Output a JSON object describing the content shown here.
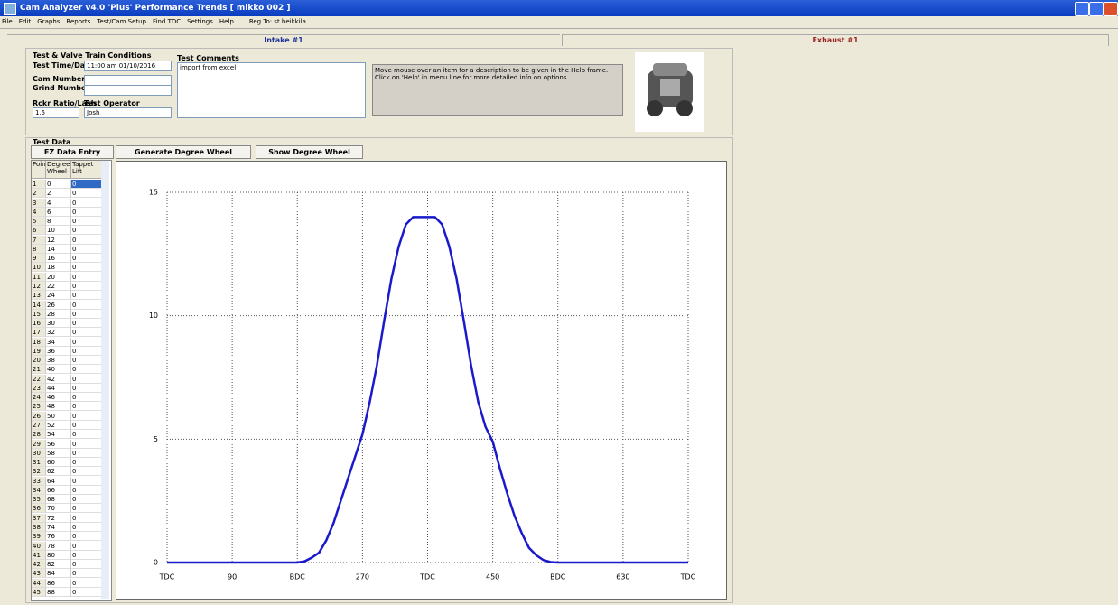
{
  "window": {
    "title": "Cam Analyzer v4.0 'Plus' Performance Trends  [ mikko 002 ]",
    "menu": [
      "File",
      "Edit",
      "Graphs",
      "Reports",
      "Test/Cam Setup",
      "Find TDC",
      "Settings",
      "Help"
    ],
    "registration": "Reg To: st.heikkila"
  },
  "tabs": [
    "Intake #1",
    "Exhaust #1"
  ],
  "conditions": {
    "heading": "Test & Valve Train Conditions",
    "time_label": "Test Time/Date",
    "time_value": "11:00 am  01/10/2016",
    "cam_label": "Cam Number",
    "grind_label": "Grind Number",
    "ratio_label": "Rckr Ratio/Lash",
    "ratio_value": "1.5",
    "operator_label": "Test Operator",
    "operator_value": "Josh",
    "comments_label": "Test Comments",
    "comments_value": "import from excel",
    "help_text": "Move mouse over an item for a description to be given in the Help frame.  Click on 'Help' in menu line for more detailed info on options."
  },
  "test_data": {
    "heading": "Test Data",
    "buttons": [
      "EZ Data Entry",
      "Generate Degree Wheel Readings",
      "Show Degree Wheel"
    ]
  },
  "table": {
    "columns": [
      "Point",
      "Degree Wheel",
      "Tappet Lift"
    ],
    "rows": [
      [
        1,
        0,
        0
      ],
      [
        2,
        2,
        0
      ],
      [
        3,
        4,
        0
      ],
      [
        4,
        6,
        0
      ],
      [
        5,
        8,
        0
      ],
      [
        6,
        10,
        0
      ],
      [
        7,
        12,
        0
      ],
      [
        8,
        14,
        0
      ],
      [
        9,
        16,
        0
      ],
      [
        10,
        18,
        0
      ],
      [
        11,
        20,
        0
      ],
      [
        12,
        22,
        0
      ],
      [
        13,
        24,
        0
      ],
      [
        14,
        26,
        0
      ],
      [
        15,
        28,
        0
      ],
      [
        16,
        30,
        0
      ],
      [
        17,
        32,
        0
      ],
      [
        18,
        34,
        0
      ],
      [
        19,
        36,
        0
      ],
      [
        20,
        38,
        0
      ],
      [
        21,
        40,
        0
      ],
      [
        22,
        42,
        0
      ],
      [
        23,
        44,
        0
      ],
      [
        24,
        46,
        0
      ],
      [
        25,
        48,
        0
      ],
      [
        26,
        50,
        0
      ],
      [
        27,
        52,
        0
      ],
      [
        28,
        54,
        0
      ],
      [
        29,
        56,
        0
      ],
      [
        30,
        58,
        0
      ],
      [
        31,
        60,
        0
      ],
      [
        32,
        62,
        0
      ],
      [
        33,
        64,
        0
      ],
      [
        34,
        66,
        0
      ],
      [
        35,
        68,
        0
      ],
      [
        36,
        70,
        0
      ],
      [
        37,
        72,
        0
      ],
      [
        38,
        74,
        0
      ],
      [
        39,
        76,
        0
      ],
      [
        40,
        78,
        0
      ],
      [
        41,
        80,
        0
      ],
      [
        42,
        82,
        0
      ],
      [
        43,
        84,
        0
      ],
      [
        44,
        86,
        0
      ],
      [
        45,
        88,
        0
      ]
    ]
  },
  "chart_data": {
    "type": "line",
    "grid": true,
    "xlim": [
      0,
      720
    ],
    "ylim": [
      0,
      15
    ],
    "xticks": [
      {
        "value": 0,
        "label": "TDC"
      },
      90,
      {
        "value": 180,
        "label": "BDC"
      },
      270,
      {
        "value": 360,
        "label": "TDC"
      },
      450,
      {
        "value": 540,
        "label": "BDC"
      },
      630,
      {
        "value": 720,
        "label": "TDC"
      }
    ],
    "yticks": [
      0,
      5,
      10,
      15
    ],
    "x": [
      0,
      10,
      20,
      30,
      40,
      50,
      60,
      70,
      80,
      90,
      100,
      110,
      120,
      130,
      140,
      150,
      160,
      170,
      180,
      190,
      200,
      210,
      220,
      230,
      240,
      250,
      260,
      270,
      280,
      290,
      300,
      310,
      320,
      330,
      340,
      350,
      360,
      370,
      380,
      390,
      400,
      410,
      420,
      430,
      440,
      450,
      460,
      470,
      480,
      490,
      500,
      510,
      520,
      530,
      540,
      550,
      560,
      570,
      580,
      590,
      600,
      610,
      620,
      630,
      640,
      650,
      660,
      670,
      680,
      690,
      700,
      710,
      720
    ],
    "series": [
      {
        "color": "#1a1acc",
        "values": [
          0,
          0,
          0,
          0,
          0,
          0,
          0,
          0,
          0,
          0,
          0,
          0,
          0,
          0,
          0,
          0,
          0,
          0,
          0,
          0.05,
          0.2,
          0.4,
          0.9,
          1.6,
          2.5,
          3.4,
          4.3,
          5.2,
          6.5,
          8,
          9.8,
          11.5,
          12.8,
          13.7,
          14,
          14,
          14,
          14,
          13.7,
          12.8,
          11.5,
          9.8,
          8,
          6.5,
          5.5,
          4.9,
          3.8,
          2.8,
          1.9,
          1.2,
          0.6,
          0.3,
          0.1,
          0.02,
          0,
          0,
          0,
          0,
          0,
          0,
          0,
          0,
          0,
          0,
          0,
          0,
          0,
          0,
          0,
          0,
          0,
          0,
          0
        ]
      }
    ]
  }
}
